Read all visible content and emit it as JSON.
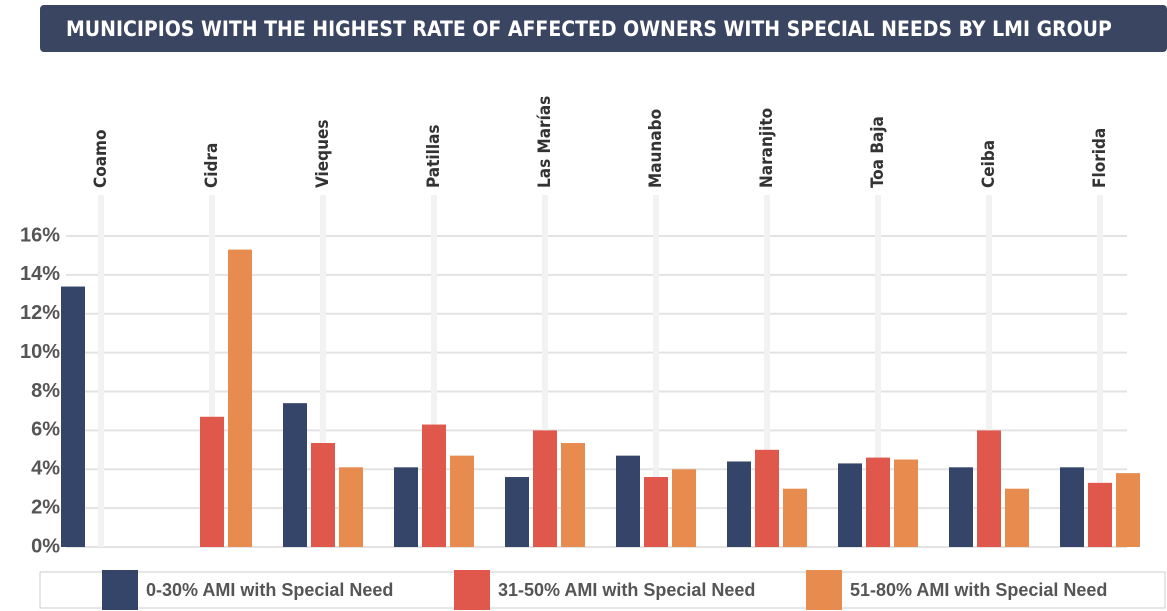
{
  "chart_data": {
    "type": "bar",
    "title": "MUNICIPIOS WITH THE HIGHEST RATE OF AFFECTED OWNERS WITH SPECIAL NEEDS BY LMI GROUP",
    "categories": [
      "Coamo",
      "Cidra",
      "Vieques",
      "Patillas",
      "Las Marías",
      "Maunabo",
      "Naranjito",
      "Toa Baja",
      "Ceiba",
      "Florida"
    ],
    "series": [
      {
        "name": "0-30% AMI with Special Need",
        "color": "#35456a",
        "values": [
          13.4,
          0,
          7.4,
          4.1,
          3.6,
          4.7,
          4.4,
          4.3,
          4.1,
          4.1
        ]
      },
      {
        "name": "31-50% AMI with Special Need",
        "color": "#e0574b",
        "values": [
          0,
          6.7,
          5.35,
          6.3,
          6.0,
          3.6,
          5.0,
          4.6,
          6.0,
          3.3
        ]
      },
      {
        "name": "51-80% AMI with Special Need",
        "color": "#e88b4f",
        "values": [
          0,
          15.3,
          4.1,
          4.7,
          5.35,
          4.0,
          3.0,
          4.5,
          3.0,
          3.8
        ]
      }
    ],
    "ylim": [
      0,
      16
    ],
    "yticks": [
      {
        "value": 0,
        "label": "0%"
      },
      {
        "value": 2,
        "label": "2%"
      },
      {
        "value": 4,
        "label": "4%"
      },
      {
        "value": 6,
        "label": "6%"
      },
      {
        "value": 8,
        "label": "8%"
      },
      {
        "value": 10,
        "label": "10%"
      },
      {
        "value": 12,
        "label": "12%"
      },
      {
        "value": 14,
        "label": "14%"
      },
      {
        "value": 16,
        "label": "16%"
      }
    ],
    "grid": true
  }
}
